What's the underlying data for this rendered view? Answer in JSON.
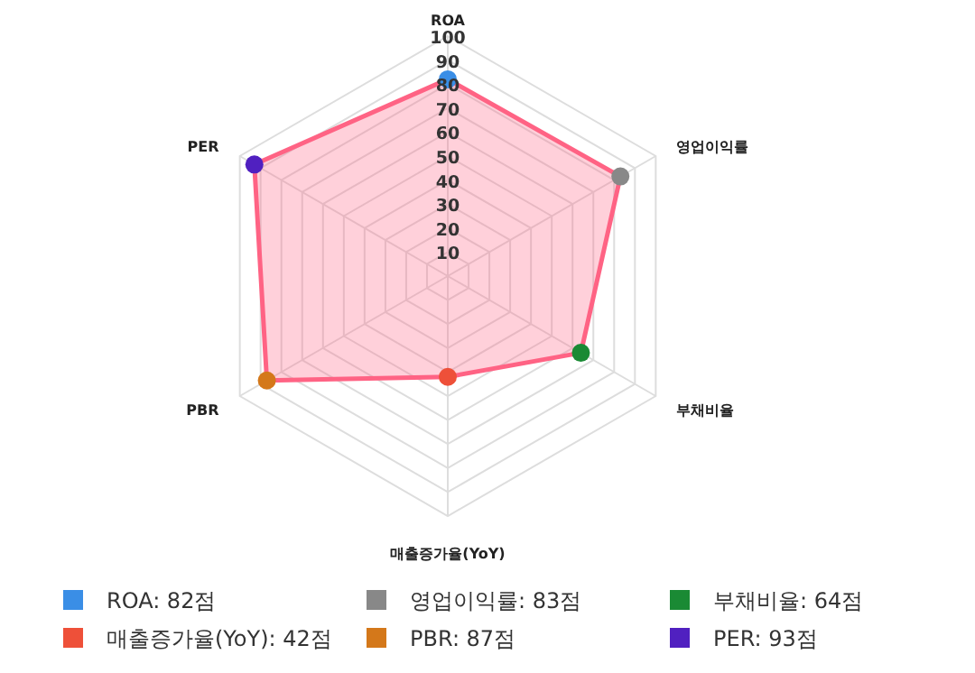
{
  "chart_data": {
    "type": "radar",
    "categories": [
      "ROA",
      "영업이익률",
      "부채비율",
      "매출증가율(YoY)",
      "PBR",
      "PER"
    ],
    "series": [
      {
        "color": "#ff6384",
        "colors": [
          "#3a8ee6",
          "#888888",
          "#1a8a34",
          "#ee5039",
          "#d4781a",
          "#5020c0"
        ],
        "values": [
          82,
          83,
          64,
          42,
          87,
          93
        ]
      }
    ],
    "ylim": [
      0,
      100
    ],
    "yticks": [
      10,
      20,
      30,
      40,
      50,
      60,
      70,
      80,
      90,
      100
    ],
    "grid": true,
    "marker": "circle",
    "annotations": [
      "ROA: 82점",
      "영업이익률: 83점",
      "부채비율: 64점",
      "매출증가율(YoY): 42점",
      "PBR: 87점",
      "PER: 93점"
    ]
  }
}
